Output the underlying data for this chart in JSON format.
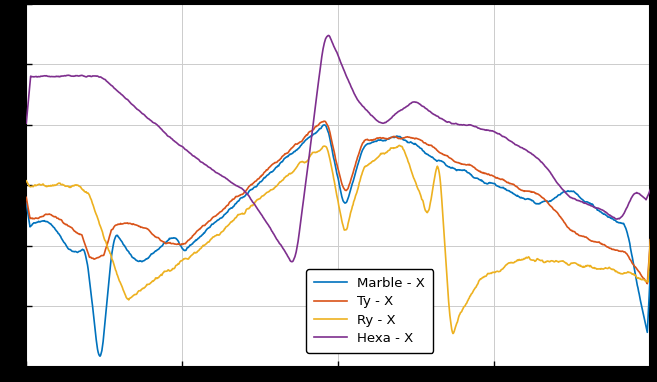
{
  "colors": {
    "marble": "#0072bd",
    "ty": "#d95319",
    "ry": "#edb120",
    "hexa": "#7e2f8e"
  },
  "legend_labels": [
    "Marble - X",
    "Ty - X",
    "Ry - X",
    "Hexa - X"
  ],
  "background_color": "#ffffff",
  "outer_background": "#000000",
  "grid_color": "#cccccc",
  "figsize": [
    6.57,
    3.82
  ],
  "dpi": 100,
  "linewidth": 1.2
}
